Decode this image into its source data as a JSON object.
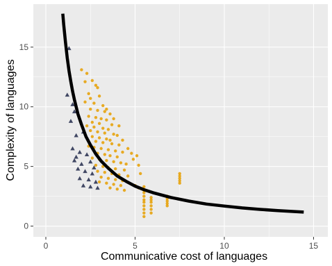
{
  "chart_data": {
    "type": "scatter",
    "xlabel": "Communicative cost of languages",
    "ylabel": "Complexity of languages",
    "xlim": [
      -0.7,
      15.8
    ],
    "ylim": [
      -0.9,
      18.6
    ],
    "x_ticks": [
      0,
      5,
      10,
      15
    ],
    "y_ticks": [
      0,
      5,
      10,
      15
    ],
    "x_tick_labels": [
      "0",
      "5",
      "10",
      "15"
    ],
    "y_tick_labels": [
      "0",
      "5",
      "10",
      "15"
    ],
    "grid": true,
    "legend": "none",
    "colors": {
      "orange_points": "#e69f00",
      "triangle_points": "#2e3554",
      "curve": "#000000",
      "panel": "#ebebeb"
    },
    "series": [
      {
        "marker": "circle",
        "color": "#e69f00",
        "points": [
          [
            2.0,
            13.1
          ],
          [
            2.3,
            12.8
          ],
          [
            2.6,
            12.2
          ],
          [
            2.9,
            11.6
          ],
          [
            2.4,
            11.1
          ],
          [
            3.0,
            10.9
          ],
          [
            2.2,
            10.4
          ],
          [
            2.7,
            10.3
          ],
          [
            3.2,
            10.1
          ],
          [
            2.5,
            9.8
          ],
          [
            2.9,
            9.7
          ],
          [
            3.3,
            9.6
          ],
          [
            3.6,
            9.4
          ],
          [
            2.4,
            9.2
          ],
          [
            2.8,
            9.1
          ],
          [
            3.1,
            9.0
          ],
          [
            3.4,
            8.9
          ],
          [
            2.6,
            8.7
          ],
          [
            3.0,
            8.6
          ],
          [
            3.7,
            8.5
          ],
          [
            2.3,
            8.4
          ],
          [
            2.7,
            8.3
          ],
          [
            3.2,
            8.2
          ],
          [
            3.5,
            8.1
          ],
          [
            2.5,
            8.0
          ],
          [
            2.9,
            7.9
          ],
          [
            3.3,
            7.8
          ],
          [
            3.8,
            7.7
          ],
          [
            4.0,
            7.6
          ],
          [
            2.6,
            7.5
          ],
          [
            3.0,
            7.4
          ],
          [
            3.4,
            7.3
          ],
          [
            3.6,
            7.2
          ],
          [
            2.8,
            7.1
          ],
          [
            3.2,
            7.0
          ],
          [
            3.7,
            6.9
          ],
          [
            4.1,
            6.8
          ],
          [
            2.4,
            6.7
          ],
          [
            2.7,
            6.6
          ],
          [
            3.1,
            6.5
          ],
          [
            3.5,
            6.4
          ],
          [
            3.9,
            6.3
          ],
          [
            4.3,
            6.2
          ],
          [
            2.9,
            6.1
          ],
          [
            3.3,
            6.0
          ],
          [
            3.6,
            5.9
          ],
          [
            4.0,
            5.8
          ],
          [
            2.6,
            5.7
          ],
          [
            3.0,
            5.6
          ],
          [
            3.4,
            5.5
          ],
          [
            3.8,
            5.4
          ],
          [
            4.2,
            5.3
          ],
          [
            4.5,
            5.2
          ],
          [
            2.8,
            5.1
          ],
          [
            3.2,
            5.0
          ],
          [
            3.5,
            4.9
          ],
          [
            3.9,
            4.8
          ],
          [
            4.4,
            4.7
          ],
          [
            2.9,
            4.6
          ],
          [
            3.3,
            4.5
          ],
          [
            3.7,
            4.4
          ],
          [
            4.1,
            4.3
          ],
          [
            4.6,
            4.2
          ],
          [
            3.1,
            4.1
          ],
          [
            3.5,
            4.0
          ],
          [
            3.9,
            3.9
          ],
          [
            4.3,
            3.8
          ],
          [
            3.0,
            3.7
          ],
          [
            3.4,
            3.6
          ],
          [
            3.8,
            3.5
          ],
          [
            4.2,
            3.4
          ],
          [
            3.6,
            3.2
          ],
          [
            4.0,
            3.1
          ],
          [
            4.4,
            3.0
          ],
          [
            4.8,
            6.1
          ],
          [
            5.1,
            5.9
          ],
          [
            5.3,
            4.4
          ],
          [
            5.0,
            3.4
          ],
          [
            5.2,
            3.2
          ],
          [
            5.4,
            3.1
          ],
          [
            2.2,
            12.1
          ],
          [
            2.8,
            11.8
          ],
          [
            3.4,
            9.8
          ],
          [
            3.8,
            9.0
          ],
          [
            4.1,
            8.4
          ],
          [
            4.3,
            7.2
          ],
          [
            4.6,
            6.5
          ],
          [
            4.9,
            5.6
          ],
          [
            5.2,
            5.1
          ],
          [
            2.5,
            10.7
          ],
          [
            5.5,
            3.3
          ],
          [
            5.5,
            3.0
          ],
          [
            5.5,
            2.8
          ],
          [
            5.5,
            2.5
          ],
          [
            5.5,
            2.2
          ],
          [
            5.5,
            2.0
          ],
          [
            5.5,
            1.7
          ],
          [
            5.5,
            1.4
          ],
          [
            5.5,
            1.1
          ],
          [
            5.5,
            0.8
          ],
          [
            5.9,
            2.4
          ],
          [
            5.9,
            2.2
          ],
          [
            5.9,
            2.0
          ],
          [
            5.9,
            1.7
          ],
          [
            5.9,
            1.4
          ],
          [
            5.9,
            1.1
          ],
          [
            6.8,
            2.5
          ],
          [
            6.8,
            2.3
          ],
          [
            6.8,
            2.1
          ],
          [
            6.8,
            1.9
          ],
          [
            6.8,
            1.7
          ],
          [
            7.5,
            4.4
          ],
          [
            7.5,
            4.2
          ],
          [
            7.5,
            4.0
          ],
          [
            7.5,
            3.8
          ],
          [
            7.5,
            3.6
          ]
        ]
      },
      {
        "marker": "triangle",
        "color": "#2e3554",
        "points": [
          [
            1.3,
            14.9
          ],
          [
            1.2,
            11.0
          ],
          [
            1.5,
            10.2
          ],
          [
            1.6,
            9.6
          ],
          [
            1.4,
            8.8
          ],
          [
            1.7,
            7.6
          ],
          [
            2.1,
            7.9
          ],
          [
            1.5,
            6.5
          ],
          [
            1.9,
            6.2
          ],
          [
            2.3,
            6.0
          ],
          [
            1.6,
            5.5
          ],
          [
            2.0,
            5.2
          ],
          [
            2.5,
            5.4
          ],
          [
            1.8,
            4.8
          ],
          [
            2.2,
            4.6
          ],
          [
            2.6,
            4.4
          ],
          [
            1.9,
            4.0
          ],
          [
            2.4,
            3.9
          ],
          [
            2.8,
            3.7
          ],
          [
            2.1,
            3.4
          ],
          [
            2.5,
            3.3
          ],
          [
            2.9,
            3.2
          ],
          [
            2.7,
            4.9
          ],
          [
            1.7,
            5.8
          ]
        ]
      }
    ],
    "curve": {
      "type": "line",
      "color": "#000000",
      "points": [
        [
          0.95,
          17.8
        ],
        [
          1.0,
          16.9
        ],
        [
          1.1,
          15.4
        ],
        [
          1.2,
          14.1
        ],
        [
          1.3,
          13.0
        ],
        [
          1.4,
          12.1
        ],
        [
          1.5,
          11.3
        ],
        [
          1.6,
          10.6
        ],
        [
          1.8,
          9.4
        ],
        [
          2.0,
          8.5
        ],
        [
          2.25,
          7.5
        ],
        [
          2.5,
          6.8
        ],
        [
          2.8,
          6.05
        ],
        [
          3.1,
          5.45
        ],
        [
          3.5,
          4.85
        ],
        [
          4.0,
          4.2
        ],
        [
          4.5,
          3.75
        ],
        [
          5.0,
          3.35
        ],
        [
          5.5,
          3.05
        ],
        [
          6.0,
          2.8
        ],
        [
          7.0,
          2.4
        ],
        [
          8.0,
          2.1
        ],
        [
          9.0,
          1.85
        ],
        [
          10.0,
          1.68
        ],
        [
          11.0,
          1.52
        ],
        [
          12.0,
          1.4
        ],
        [
          13.0,
          1.3
        ],
        [
          14.45,
          1.17
        ]
      ]
    }
  }
}
